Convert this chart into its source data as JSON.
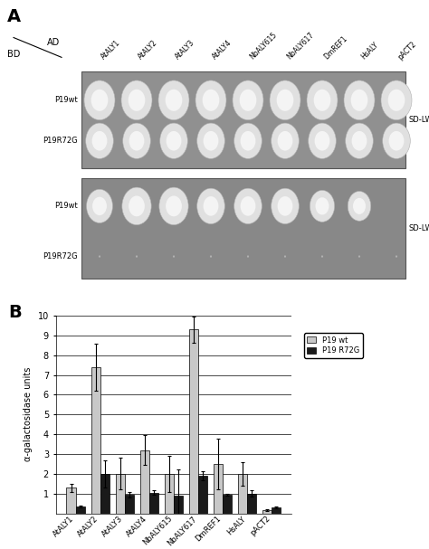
{
  "panel_a_label": "A",
  "panel_b_label": "B",
  "ad_labels": [
    "AtALY1",
    "AtALY2",
    "AtALY3",
    "AtALY4",
    "NbALY615",
    "NbALY617",
    "DmREF1",
    "HsALY",
    "pACT2"
  ],
  "bd_labels": [
    "P19wt",
    "P19R72G"
  ],
  "sd_lw_label": "SD-LW",
  "sd_lwh_label": "SD-LWH",
  "bar_categories": [
    "AtALY1",
    "AtALY2",
    "AtALY3",
    "AtALY4",
    "NbALY615",
    "NbALY617",
    "DmREF1",
    "HsALY",
    "pACT2"
  ],
  "p19wt_values": [
    1.3,
    7.4,
    2.0,
    3.2,
    2.0,
    9.3,
    2.5,
    2.0,
    0.15
  ],
  "p19r72g_values": [
    0.35,
    2.0,
    0.95,
    1.05,
    0.9,
    1.9,
    0.95,
    1.0,
    0.3
  ],
  "p19wt_errors": [
    0.2,
    1.2,
    0.8,
    0.75,
    0.9,
    0.65,
    1.3,
    0.6,
    0.05
  ],
  "p19r72g_errors": [
    0.05,
    0.7,
    0.15,
    0.1,
    1.3,
    0.25,
    0.05,
    0.15,
    0.05
  ],
  "ylim": [
    0,
    10
  ],
  "yticks": [
    1,
    2,
    3,
    4,
    5,
    6,
    7,
    8,
    9,
    10
  ],
  "ylabel": "α-galactosidase units",
  "bar_color_wt": "#c8c8c8",
  "bar_color_r72g": "#1a1a1a",
  "legend_wt": "P19 wt",
  "legend_r72g": "P19 R72G",
  "plate_top_bg": "#909090",
  "plate_bottom_bg": "#888888",
  "fig_bg": "#ffffff",
  "sd_lw_colonies_wt_sizes": [
    1.0,
    1.0,
    1.0,
    1.0,
    1.0,
    1.0,
    1.0,
    1.0,
    1.0
  ],
  "sd_lw_colonies_r72g_sizes": [
    0.9,
    0.9,
    0.9,
    0.9,
    0.9,
    0.9,
    0.9,
    0.9,
    0.9
  ],
  "sd_lwh_colonies_wt_sizes": [
    0.85,
    0.95,
    0.95,
    0.9,
    0.9,
    0.9,
    0.8,
    0.75,
    0.0
  ],
  "sd_lwh_colonies_r72g_sizes": [
    0.15,
    0.15,
    0.15,
    0.15,
    0.15,
    0.15,
    0.15,
    0.15,
    0.15
  ]
}
